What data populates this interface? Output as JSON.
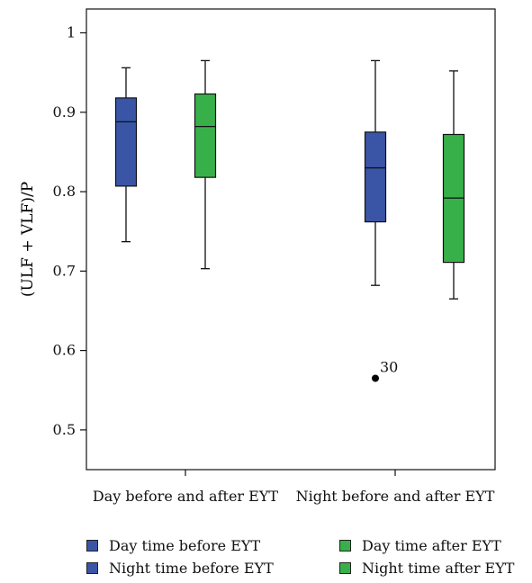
{
  "chart_data": {
    "type": "box",
    "ylabel": "(ULF + VLF)/P",
    "ylim": [
      0.45,
      1.03
    ],
    "yticks": [
      "0.5",
      "0.6",
      "0.7",
      "0.8",
      "0.9",
      "1"
    ],
    "categories": [
      "Day before and after EYT",
      "Night before and after EYT"
    ],
    "series": [
      {
        "name": "Day time before EYT",
        "color": "#3b55a6",
        "category": 0,
        "whisker_low": 0.737,
        "q1": 0.807,
        "median": 0.888,
        "q3": 0.918,
        "whisker_high": 0.956
      },
      {
        "name": "Day time after EYT",
        "color": "#38b04a",
        "category": 0,
        "whisker_low": 0.703,
        "q1": 0.818,
        "median": 0.882,
        "q3": 0.923,
        "whisker_high": 0.965
      },
      {
        "name": "Night time before EYT",
        "color": "#3b55a6",
        "category": 1,
        "whisker_low": 0.682,
        "q1": 0.762,
        "median": 0.83,
        "q3": 0.875,
        "whisker_high": 0.965
      },
      {
        "name": "Night time after EYT",
        "color": "#38b04a",
        "category": 1,
        "whisker_low": 0.665,
        "q1": 0.711,
        "median": 0.792,
        "q3": 0.872,
        "whisker_high": 0.952
      }
    ],
    "outliers": [
      {
        "series": 2,
        "value": 0.565,
        "label": "30"
      }
    ],
    "legend_position": "bottom"
  }
}
